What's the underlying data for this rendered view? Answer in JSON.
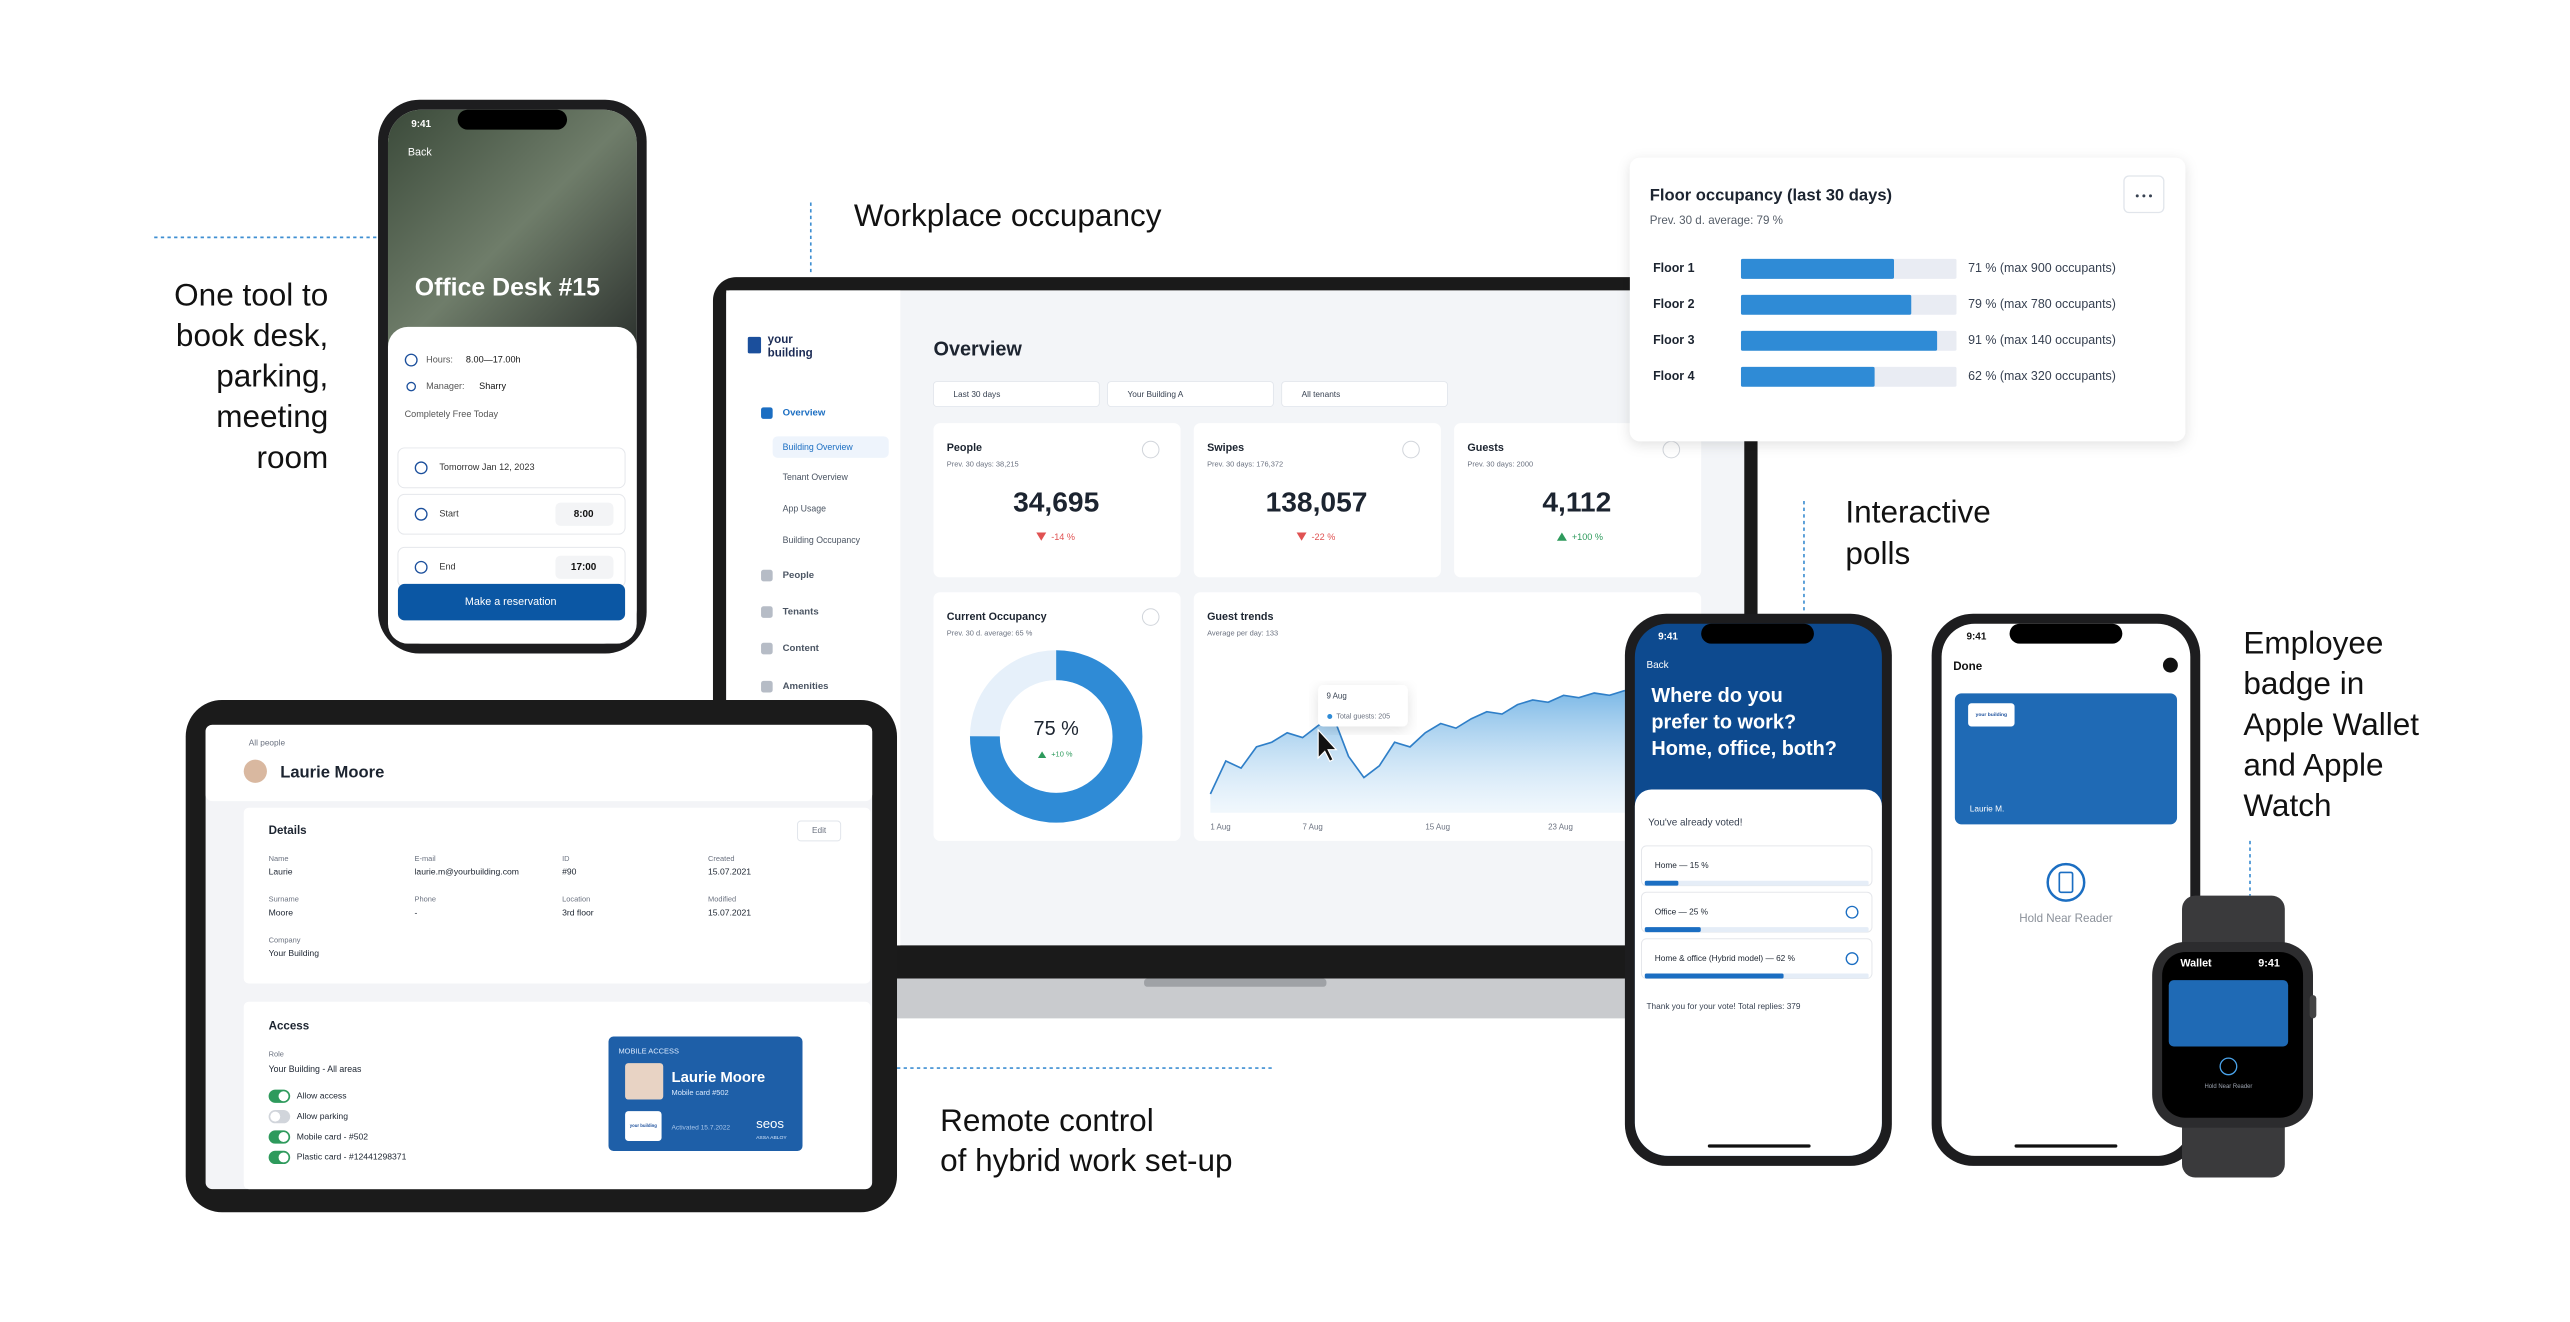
{
  "captions": {
    "booking": [
      "One tool to",
      "book desk,",
      "parking,",
      "meeting",
      "room"
    ],
    "occupancy": "Workplace occupancy",
    "polls": [
      "Interactive",
      "polls"
    ],
    "badge": [
      "Employee",
      "badge in",
      "Apple Wallet",
      "and Apple",
      "Watch"
    ],
    "remote": [
      "Remote control",
      "of hybrid work set-up"
    ]
  },
  "booking_phone": {
    "time": "9:41",
    "back": "Back",
    "title": "Office Desk #15",
    "hours_label": "Hours:",
    "hours": "8.00—17.00h",
    "manager_label": "Manager:",
    "manager": "Sharry",
    "price": "Completely Free Today",
    "date": "Tomorrow Jan 12, 2023",
    "start_label": "Start",
    "start": "8:00",
    "end_label": "End",
    "end": "17:00",
    "button": "Make a reservation"
  },
  "dashboard": {
    "logo": [
      "your",
      "building"
    ],
    "nav": [
      "Overview",
      "Building Overview",
      "Tenant Overview",
      "App Usage",
      "Building Occupancy",
      "People",
      "Tenants",
      "Content",
      "Amenities"
    ],
    "title": "Overview",
    "filters": [
      "Last 30 days",
      "Your Building A",
      "All tenants"
    ],
    "kpis": [
      {
        "label": "People",
        "prev": "Prev. 30 days: 38,215",
        "value": "34,695",
        "change": "-14 %"
      },
      {
        "label": "Swipes",
        "prev": "Prev. 30 days: 176,372",
        "value": "138,057",
        "change": "-22 %"
      },
      {
        "label": "Guests",
        "prev": "Prev. 30 days: 2000",
        "value": "4,112",
        "change": "+100 %"
      }
    ],
    "occupancy": {
      "title": "Current Occupancy",
      "prev": "Prev. 30 d. average: 65 %",
      "value": 75,
      "value_label": "75 %",
      "change": "+10 %"
    },
    "guest_trends": {
      "title": "Guest trends",
      "subtitle": "Average per day: 133",
      "x": [
        1,
        2,
        3,
        4,
        5,
        6,
        7,
        8,
        9,
        10,
        11,
        12,
        13,
        14,
        15,
        16,
        17,
        18,
        19,
        20,
        21,
        22,
        23,
        24,
        25,
        26,
        27,
        28
      ],
      "values": [
        40,
        110,
        95,
        140,
        150,
        170,
        160,
        185,
        205,
        120,
        75,
        100,
        150,
        140,
        170,
        190,
        180,
        200,
        215,
        210,
        230,
        240,
        235,
        250,
        245,
        255,
        250,
        260
      ],
      "xlim": [
        1,
        28
      ],
      "ylim": [
        0,
        300
      ],
      "xticks": [
        {
          "value": 1,
          "label": "1 Aug"
        },
        {
          "value": 7,
          "label": "7 Aug"
        },
        {
          "value": 15,
          "label": "15 Aug"
        },
        {
          "value": 23,
          "label": "23 Aug"
        }
      ],
      "tooltip_date": "9 Aug",
      "tooltip_text": "Total guests: 205"
    }
  },
  "floor_occupancy": {
    "title": "Floor occupancy (last 30 days)",
    "subtitle": "Prev. 30 d. average: 79 %",
    "floors": [
      {
        "name": "Floor 1",
        "value": 71,
        "label": "71 % (max 900 occupants)"
      },
      {
        "name": "Floor 2",
        "value": 79,
        "label": "79 % (max 780 occupants)"
      },
      {
        "name": "Floor 3",
        "value": 91,
        "label": "91 % (max 140 occupants)"
      },
      {
        "name": "Floor 4",
        "value": 62,
        "label": "62 % (max 320 occupants)"
      }
    ]
  },
  "profile": {
    "back": "All people",
    "name": "Laurie Moore",
    "details": "Details",
    "edit": "Edit",
    "fields": [
      {
        "label": "Name",
        "value": "Laurie"
      },
      {
        "label": "E-mail",
        "value": "laurie.m@yourbuilding.com"
      },
      {
        "label": "ID",
        "value": "#90"
      },
      {
        "label": "Created",
        "value": "15.07.2021"
      },
      {
        "label": "Surname",
        "value": "Moore"
      },
      {
        "label": "Phone",
        "value": "-"
      },
      {
        "label": "Location",
        "value": "3rd floor"
      },
      {
        "label": "Modified",
        "value": "15.07.2021"
      },
      {
        "label": "Company",
        "value": "Your Building"
      }
    ],
    "access": "Access",
    "role_label": "Role",
    "role": "Your Building - All areas",
    "toggles": [
      {
        "label": "Allow access",
        "enabled": true
      },
      {
        "label": "Allow parking",
        "enabled": false
      },
      {
        "label": "Mobile card - #502",
        "enabled": true
      },
      {
        "label": "Plastic card - #12441298371",
        "enabled": true
      }
    ],
    "card": {
      "header": "MOBILE ACCESS",
      "name": "Laurie Moore",
      "number": "Mobile card #502",
      "activated": "Activated 15.7.2022",
      "brand": "seos",
      "maker": "ASSA ABLOY",
      "logo": "your building"
    }
  },
  "poll": {
    "time": "9:41",
    "back": "Back",
    "question": [
      "Where do you",
      "prefer to work?",
      "Home, office, both?"
    ],
    "voted": "You've already voted!",
    "options": [
      {
        "label": "Home — 15 %",
        "value": 15,
        "selected": false
      },
      {
        "label": "Office — 25 %",
        "value": 25,
        "selected": true
      },
      {
        "label": "Home & office (Hybrid model) — 62 %",
        "value": 62,
        "selected": true
      }
    ],
    "footer": "Thank you for your vote! Total replies: 379"
  },
  "wallet": {
    "time": "9:41",
    "done": "Done",
    "holder": "Laurie M.",
    "hint": "Hold Near Reader",
    "logo": "your building"
  },
  "watch": {
    "app": "Wallet",
    "time": "9:41",
    "hint": "Hold Near Reader"
  }
}
